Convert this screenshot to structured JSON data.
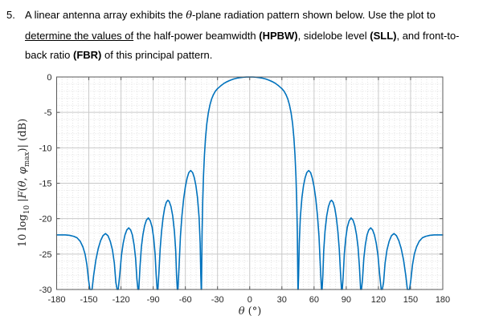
{
  "question": {
    "number": "5.",
    "l1a": "A linear antenna array exhibits the ",
    "l1theta": "θ",
    "l1b": "-plane radiation pattern shown below. Use the plot to",
    "l2u": "determine the values of",
    "l2a": " the half-power beamwidth ",
    "l2hpbw": "(HPBW)",
    "l2b": ", sidelobe level ",
    "l2sll": "(SLL)",
    "l2c": ", and front-to-",
    "l3a": "back ratio ",
    "l3fbr": "(FBR)",
    "l3b": " of this principal pattern."
  },
  "axes": {
    "ylabel_parts": {
      "p1": "10 log",
      "p1sub": "10",
      "p2": " |",
      "f": "F",
      "p3": "(",
      "th": "θ",
      "p4": ", ",
      "ph": "φ",
      "phsub": "max",
      "p5": ")| ",
      "p6": "(dB)"
    },
    "xlabel_parts": {
      "th": "θ",
      "rest": " (°)"
    }
  },
  "chart_data": {
    "type": "line",
    "title": "",
    "xlabel": "θ (°)",
    "ylabel": "10 log10 |F(θ, φmax)| (dB)",
    "xlim": [
      -180,
      180
    ],
    "ylim": [
      -30,
      0
    ],
    "x_ticks": [
      -180,
      -150,
      -120,
      -90,
      -60,
      -30,
      0,
      30,
      60,
      90,
      120,
      150,
      180
    ],
    "y_ticks": [
      0,
      -5,
      -10,
      -15,
      -20,
      -25,
      -30
    ],
    "x_minor_step_deg": 5,
    "y_minor_step_dB": 1,
    "grid": "major solid, minor dotted",
    "legend": "none",
    "line_color": "#0072BD",
    "axis_color": "#595959",
    "major_grid_color": "#c9c9c9",
    "minor_grid_color": "#e3e3e3",
    "tick_label_color": "#262626",
    "symmetry": "pattern symmetric about theta = 0 (values below are right half, mirrored)",
    "features": {
      "main_lobe": {
        "direction_deg": 0,
        "peak_dB": 0,
        "flat_top_extent_deg": 18
      },
      "half_power_points_deg": [
        -35.5,
        35.5
      ],
      "hpbw_deg": 71,
      "first_null_deg": 45,
      "sidelobe_peaks_theta_dB": [
        [
          55,
          -13.2
        ],
        [
          76.3,
          -17.4
        ],
        [
          94.5,
          -19.9
        ],
        [
          112.8,
          -21.3
        ],
        [
          134.5,
          -22.1
        ]
      ],
      "nulls_deg": [
        45,
        67.2,
        85.6,
        103.4,
        122.6,
        147.8
      ],
      "back_lobe_level_dB_at_180": -22.3,
      "sll_dB": -13.2,
      "fbr_dB": 22.3
    },
    "samples_right_half": [
      [
        0,
        0
      ],
      [
        3,
        -0.01
      ],
      [
        6,
        -0.04
      ],
      [
        9,
        -0.09
      ],
      [
        12,
        -0.17
      ],
      [
        15,
        -0.28
      ],
      [
        18,
        -0.45
      ],
      [
        21,
        -0.65
      ],
      [
        24,
        -0.9
      ],
      [
        27,
        -1.25
      ],
      [
        30,
        -1.65
      ],
      [
        32,
        -2.0
      ],
      [
        34,
        -2.55
      ],
      [
        35.5,
        -3.1
      ],
      [
        37,
        -3.9
      ],
      [
        38.5,
        -5.0
      ],
      [
        40,
        -6.6
      ],
      [
        41.2,
        -8.6
      ],
      [
        42.2,
        -11
      ],
      [
        43.1,
        -14
      ],
      [
        43.8,
        -17.5
      ],
      [
        44.4,
        -22
      ],
      [
        44.75,
        -27
      ],
      [
        44.95,
        -40
      ],
      [
        45.2,
        -40
      ],
      [
        45.6,
        -28
      ],
      [
        46.2,
        -23.5
      ],
      [
        47.2,
        -19.8
      ],
      [
        48.7,
        -17
      ],
      [
        50.2,
        -15.3
      ],
      [
        51.7,
        -14.2
      ],
      [
        53.2,
        -13.5
      ],
      [
        55,
        -13.2
      ],
      [
        56.8,
        -13.5
      ],
      [
        58.4,
        -14.3
      ],
      [
        60,
        -15.5
      ],
      [
        61.6,
        -17.2
      ],
      [
        63.2,
        -19.6
      ],
      [
        64.6,
        -22.5
      ],
      [
        65.8,
        -26.5
      ],
      [
        66.9,
        -40
      ],
      [
        67.5,
        -40
      ],
      [
        68.2,
        -28
      ],
      [
        69,
        -24.5
      ],
      [
        70.2,
        -21.8
      ],
      [
        71.8,
        -19.6
      ],
      [
        73.4,
        -18.3
      ],
      [
        75,
        -17.6
      ],
      [
        76.3,
        -17.4
      ],
      [
        77.8,
        -17.7
      ],
      [
        79.3,
        -18.5
      ],
      [
        80.8,
        -19.9
      ],
      [
        82.2,
        -21.8
      ],
      [
        83.5,
        -24.3
      ],
      [
        84.6,
        -27.5
      ],
      [
        85.6,
        -40
      ],
      [
        86.3,
        -40
      ],
      [
        87.2,
        -28
      ],
      [
        88.2,
        -25
      ],
      [
        89.5,
        -22.8
      ],
      [
        91,
        -21.2
      ],
      [
        92.7,
        -20.3
      ],
      [
        94.5,
        -19.9
      ],
      [
        96.3,
        -20.2
      ],
      [
        98,
        -21
      ],
      [
        99.6,
        -22.3
      ],
      [
        101,
        -24
      ],
      [
        102.3,
        -26.8
      ],
      [
        103.4,
        -40
      ],
      [
        104.2,
        -40
      ],
      [
        105.2,
        -28.5
      ],
      [
        106.4,
        -25.6
      ],
      [
        107.8,
        -23.7
      ],
      [
        109.4,
        -22.3
      ],
      [
        111,
        -21.6
      ],
      [
        112.8,
        -21.3
      ],
      [
        114.6,
        -21.6
      ],
      [
        116.3,
        -22.3
      ],
      [
        118,
        -23.5
      ],
      [
        119.6,
        -25.2
      ],
      [
        121.1,
        -27.8
      ],
      [
        122.6,
        -40
      ],
      [
        123.6,
        -40
      ],
      [
        124.8,
        -29
      ],
      [
        126.2,
        -26.3
      ],
      [
        128,
        -24.4
      ],
      [
        130,
        -23.2
      ],
      [
        132.2,
        -22.4
      ],
      [
        134.5,
        -22.1
      ],
      [
        136.8,
        -22.4
      ],
      [
        139,
        -23.1
      ],
      [
        141.2,
        -24.2
      ],
      [
        143.4,
        -25.8
      ],
      [
        145.5,
        -28
      ],
      [
        147,
        -31
      ],
      [
        147.9,
        -40
      ],
      [
        149,
        -32
      ],
      [
        150.3,
        -28.6
      ],
      [
        151.8,
        -26.5
      ],
      [
        153.5,
        -25
      ],
      [
        155.5,
        -24
      ],
      [
        158,
        -23.2
      ],
      [
        161,
        -22.7
      ],
      [
        164,
        -22.5
      ],
      [
        168,
        -22.35
      ],
      [
        172,
        -22.3
      ],
      [
        176,
        -22.3
      ],
      [
        180,
        -22.3
      ]
    ]
  }
}
